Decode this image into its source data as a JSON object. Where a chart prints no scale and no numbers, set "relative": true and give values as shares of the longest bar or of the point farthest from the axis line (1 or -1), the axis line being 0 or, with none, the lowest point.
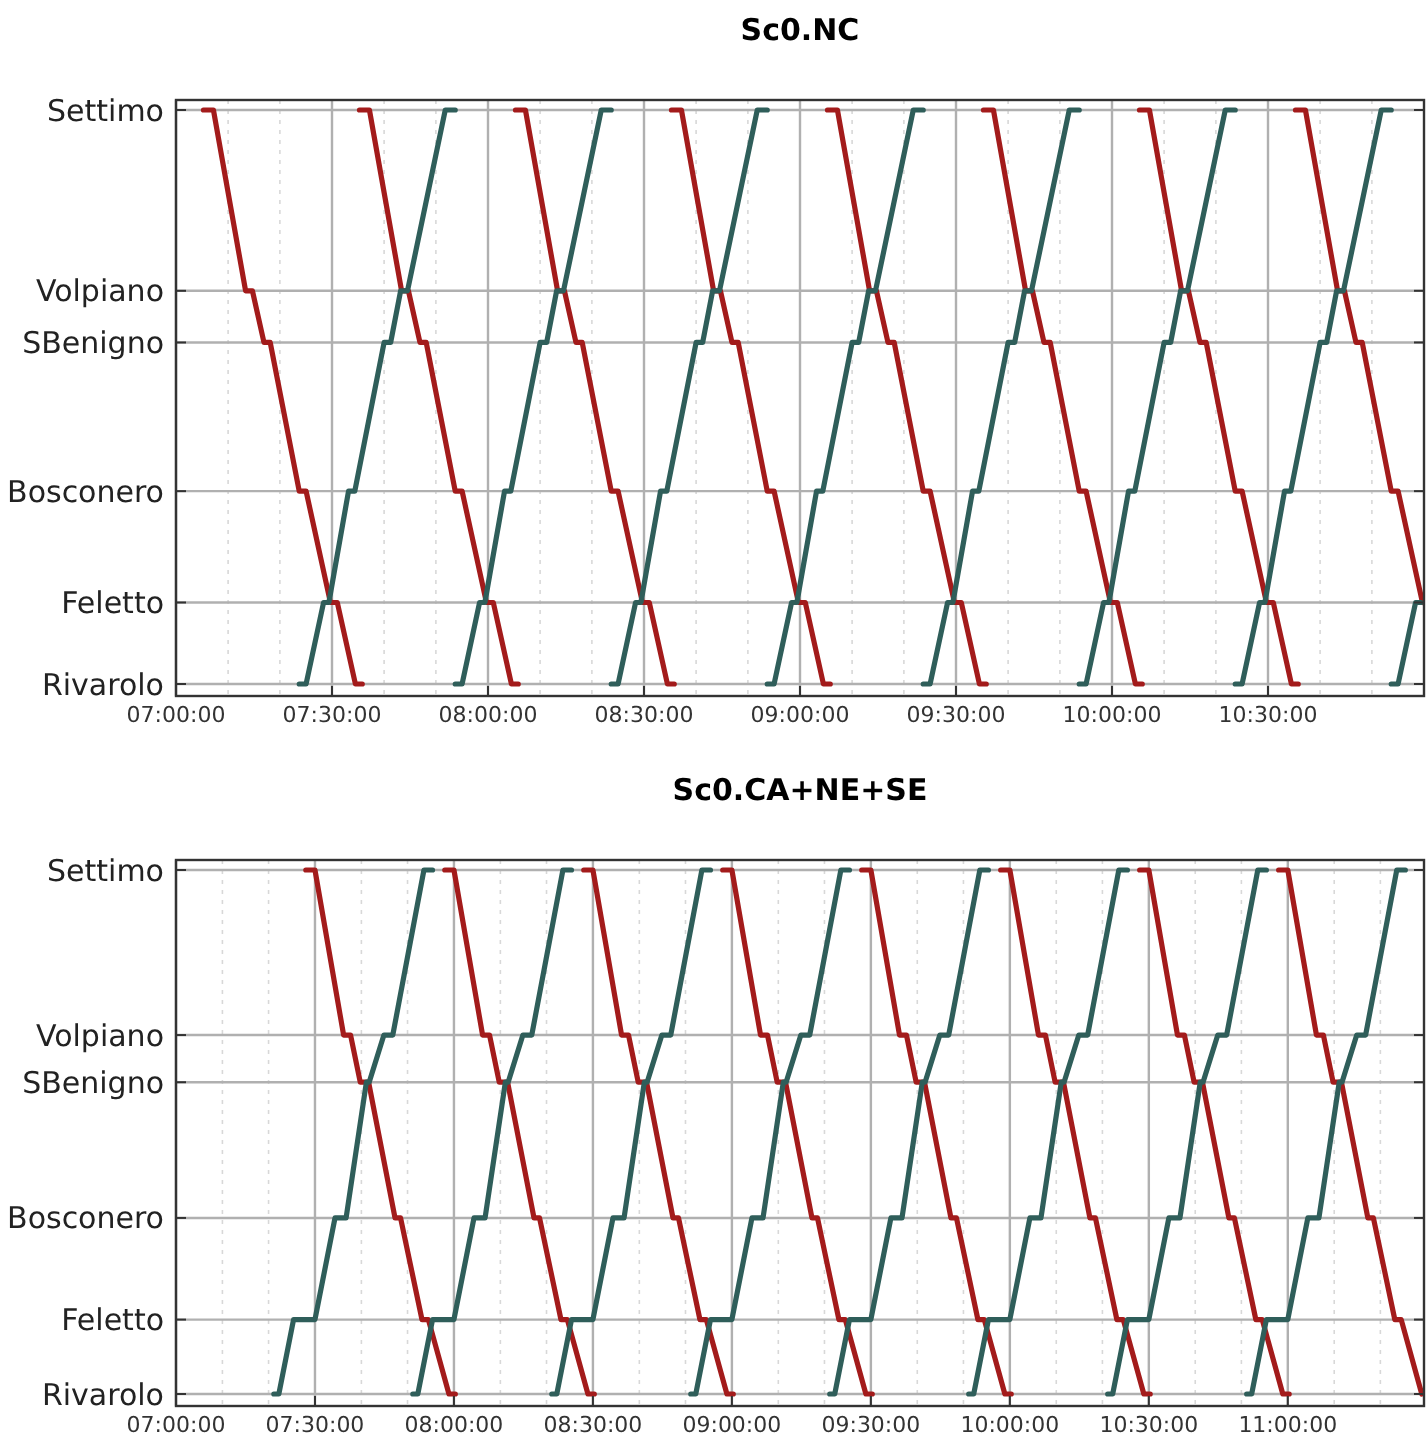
{
  "chart_data": [
    {
      "type": "line",
      "title": "Sc0.NC",
      "relative": true,
      "xlim": [
        7,
        11
      ],
      "grid": true,
      "marker": "none",
      "line_style": "solid",
      "annotations": [
        "Rivarolo",
        "Feletto",
        "Bosconero",
        "SBenigno",
        "Volpiano",
        "Settimo"
      ],
      "xticks": [
        {
          "value": 7,
          "label": "07:00:00"
        },
        {
          "value": 7.167,
          "label": null
        },
        {
          "value": 7.333,
          "label": null
        },
        {
          "value": 7.5,
          "label": "07:30:00"
        },
        {
          "value": 7.667,
          "label": null
        },
        {
          "value": 7.833,
          "label": null
        },
        {
          "value": 8,
          "label": "08:00:00"
        },
        {
          "value": 8.167,
          "label": null
        },
        {
          "value": 8.333,
          "label": null
        },
        {
          "value": 8.5,
          "label": "08:30:00"
        },
        {
          "value": 8.667,
          "label": null
        },
        {
          "value": 8.833,
          "label": null
        },
        {
          "value": 9,
          "label": "09:00:00"
        },
        {
          "value": 9.167,
          "label": null
        },
        {
          "value": 9.333,
          "label": null
        },
        {
          "value": 9.5,
          "label": "09:30:00"
        },
        {
          "value": 9.667,
          "label": null
        },
        {
          "value": 9.833,
          "label": null
        },
        {
          "value": 10,
          "label": "10:00:00"
        },
        {
          "value": 10.167,
          "label": null
        },
        {
          "value": 10.333,
          "label": null
        },
        {
          "value": 10.5,
          "label": "10:30:00"
        },
        {
          "value": 10.667,
          "label": null
        },
        {
          "value": 10.833,
          "label": null
        }
      ],
      "series": [
        {
          "color": "#a31b1b",
          "x": [
            7.088,
            7.12,
            7.223,
            7.245,
            7.282,
            7.302,
            7.395,
            7.417,
            7.495,
            7.517,
            7.575,
            7.597
          ],
          "values": [
            1,
            1,
            0.685,
            0.685,
            0.595,
            0.595,
            0.336,
            0.336,
            0.142,
            0.142,
            0,
            0
          ]
        },
        {
          "color": "#a31b1b",
          "x": [
            7.588,
            7.62,
            7.723,
            7.745,
            7.782,
            7.802,
            7.895,
            7.917,
            7.995,
            8.017,
            8.075,
            8.097
          ],
          "values": [
            1,
            1,
            0.685,
            0.685,
            0.595,
            0.595,
            0.336,
            0.336,
            0.142,
            0.142,
            0,
            0
          ]
        },
        {
          "color": "#a31b1b",
          "x": [
            8.088,
            8.12,
            8.223,
            8.245,
            8.282,
            8.302,
            8.395,
            8.417,
            8.495,
            8.517,
            8.575,
            8.597
          ],
          "values": [
            1,
            1,
            0.685,
            0.685,
            0.595,
            0.595,
            0.336,
            0.336,
            0.142,
            0.142,
            0,
            0
          ]
        },
        {
          "color": "#a31b1b",
          "x": [
            8.588,
            8.62,
            8.723,
            8.745,
            8.782,
            8.802,
            8.895,
            8.917,
            8.995,
            9.017,
            9.075,
            9.097
          ],
          "values": [
            1,
            1,
            0.685,
            0.685,
            0.595,
            0.595,
            0.336,
            0.336,
            0.142,
            0.142,
            0,
            0
          ]
        },
        {
          "color": "#a31b1b",
          "x": [
            9.088,
            9.12,
            9.223,
            9.245,
            9.282,
            9.302,
            9.395,
            9.417,
            9.495,
            9.517,
            9.575,
            9.597
          ],
          "values": [
            1,
            1,
            0.685,
            0.685,
            0.595,
            0.595,
            0.336,
            0.336,
            0.142,
            0.142,
            0,
            0
          ]
        },
        {
          "color": "#a31b1b",
          "x": [
            9.588,
            9.62,
            9.723,
            9.745,
            9.782,
            9.802,
            9.895,
            9.917,
            9.995,
            10.017,
            10.075,
            10.097
          ],
          "values": [
            1,
            1,
            0.685,
            0.685,
            0.595,
            0.595,
            0.336,
            0.336,
            0.142,
            0.142,
            0,
            0
          ]
        },
        {
          "color": "#a31b1b",
          "x": [
            10.088,
            10.12,
            10.223,
            10.245,
            10.282,
            10.302,
            10.395,
            10.417,
            10.495,
            10.517,
            10.575,
            10.597
          ],
          "values": [
            1,
            1,
            0.685,
            0.685,
            0.595,
            0.595,
            0.336,
            0.336,
            0.142,
            0.142,
            0,
            0
          ]
        },
        {
          "color": "#a31b1b",
          "x": [
            10.588,
            10.62,
            10.723,
            10.745,
            10.782,
            10.802,
            10.895,
            10.917,
            10.995
          ],
          "values": [
            1,
            1,
            0.685,
            0.685,
            0.595,
            0.595,
            0.336,
            0.336,
            0.142
          ]
        },
        {
          "color": "#2f5e5a",
          "x": [
            7.395,
            7.417,
            7.473,
            7.49,
            7.553,
            7.573,
            7.667,
            7.688,
            7.72,
            7.742,
            7.863,
            7.895
          ],
          "values": [
            0,
            0,
            0.142,
            0.142,
            0.336,
            0.336,
            0.595,
            0.595,
            0.685,
            0.685,
            1,
            1
          ]
        },
        {
          "color": "#2f5e5a",
          "x": [
            7.895,
            7.917,
            7.973,
            7.99,
            8.053,
            8.073,
            8.167,
            8.188,
            8.22,
            8.242,
            8.363,
            8.395
          ],
          "values": [
            0,
            0,
            0.142,
            0.142,
            0.336,
            0.336,
            0.595,
            0.595,
            0.685,
            0.685,
            1,
            1
          ]
        },
        {
          "color": "#2f5e5a",
          "x": [
            8.395,
            8.417,
            8.473,
            8.49,
            8.553,
            8.573,
            8.667,
            8.688,
            8.72,
            8.742,
            8.863,
            8.895
          ],
          "values": [
            0,
            0,
            0.142,
            0.142,
            0.336,
            0.336,
            0.595,
            0.595,
            0.685,
            0.685,
            1,
            1
          ]
        },
        {
          "color": "#2f5e5a",
          "x": [
            8.895,
            8.917,
            8.973,
            8.99,
            9.053,
            9.073,
            9.167,
            9.188,
            9.22,
            9.242,
            9.363,
            9.395
          ],
          "values": [
            0,
            0,
            0.142,
            0.142,
            0.336,
            0.336,
            0.595,
            0.595,
            0.685,
            0.685,
            1,
            1
          ]
        },
        {
          "color": "#2f5e5a",
          "x": [
            9.395,
            9.417,
            9.473,
            9.49,
            9.553,
            9.573,
            9.667,
            9.688,
            9.72,
            9.742,
            9.863,
            9.895
          ],
          "values": [
            0,
            0,
            0.142,
            0.142,
            0.336,
            0.336,
            0.595,
            0.595,
            0.685,
            0.685,
            1,
            1
          ]
        },
        {
          "color": "#2f5e5a",
          "x": [
            9.895,
            9.917,
            9.973,
            9.99,
            10.053,
            10.073,
            10.167,
            10.188,
            10.22,
            10.242,
            10.363,
            10.395
          ],
          "values": [
            0,
            0,
            0.142,
            0.142,
            0.336,
            0.336,
            0.595,
            0.595,
            0.685,
            0.685,
            1,
            1
          ]
        },
        {
          "color": "#2f5e5a",
          "x": [
            10.395,
            10.417,
            10.473,
            10.49,
            10.553,
            10.573,
            10.667,
            10.688,
            10.72,
            10.742,
            10.863,
            10.895
          ],
          "values": [
            0,
            0,
            0.142,
            0.142,
            0.336,
            0.336,
            0.595,
            0.595,
            0.685,
            0.685,
            1,
            1
          ]
        },
        {
          "color": "#2f5e5a",
          "x": [
            10.895,
            10.917,
            10.973,
            10.99
          ],
          "values": [
            0,
            0,
            0.142,
            0.142
          ]
        }
      ]
    },
    {
      "type": "line",
      "title": "Sc0.CA+NE+SE",
      "relative": true,
      "xlim": [
        7,
        11.49
      ],
      "grid": true,
      "marker": "none",
      "line_style": "solid",
      "annotations": [
        "Rivarolo",
        "Feletto",
        "Bosconero",
        "SBenigno",
        "Volpiano",
        "Settimo"
      ],
      "xticks": [
        {
          "value": 7,
          "label": "07:00:00"
        },
        {
          "value": 7.167,
          "label": null
        },
        {
          "value": 7.333,
          "label": null
        },
        {
          "value": 7.5,
          "label": "07:30:00"
        },
        {
          "value": 7.667,
          "label": null
        },
        {
          "value": 7.833,
          "label": null
        },
        {
          "value": 8,
          "label": "08:00:00"
        },
        {
          "value": 8.167,
          "label": null
        },
        {
          "value": 8.333,
          "label": null
        },
        {
          "value": 8.5,
          "label": "08:30:00"
        },
        {
          "value": 8.667,
          "label": null
        },
        {
          "value": 8.833,
          "label": null
        },
        {
          "value": 9,
          "label": "09:00:00"
        },
        {
          "value": 9.167,
          "label": null
        },
        {
          "value": 9.333,
          "label": null
        },
        {
          "value": 9.5,
          "label": "09:30:00"
        },
        {
          "value": 9.667,
          "label": null
        },
        {
          "value": 9.833,
          "label": null
        },
        {
          "value": 10,
          "label": "10:00:00"
        },
        {
          "value": 10.167,
          "label": null
        },
        {
          "value": 10.333,
          "label": null
        },
        {
          "value": 10.5,
          "label": "10:30:00"
        },
        {
          "value": 10.667,
          "label": null
        },
        {
          "value": 10.833,
          "label": null
        },
        {
          "value": 11,
          "label": "11:00:00"
        },
        {
          "value": 11.167,
          "label": null
        },
        {
          "value": 11.333,
          "label": null
        }
      ],
      "series": [
        {
          "color": "#a31b1b",
          "x": [
            7.467,
            7.5,
            7.603,
            7.628,
            7.663,
            7.693,
            7.788,
            7.808,
            7.885,
            7.908,
            7.982,
            8.005
          ],
          "values": [
            1,
            1,
            0.685,
            0.685,
            0.595,
            0.595,
            0.336,
            0.336,
            0.142,
            0.142,
            0,
            0
          ]
        },
        {
          "color": "#a31b1b",
          "x": [
            7.967,
            8.0,
            8.103,
            8.128,
            8.163,
            8.193,
            8.288,
            8.308,
            8.385,
            8.408,
            8.482,
            8.505
          ],
          "values": [
            1,
            1,
            0.685,
            0.685,
            0.595,
            0.595,
            0.336,
            0.336,
            0.142,
            0.142,
            0,
            0
          ]
        },
        {
          "color": "#a31b1b",
          "x": [
            8.467,
            8.5,
            8.603,
            8.628,
            8.663,
            8.693,
            8.788,
            8.808,
            8.885,
            8.908,
            8.982,
            9.005
          ],
          "values": [
            1,
            1,
            0.685,
            0.685,
            0.595,
            0.595,
            0.336,
            0.336,
            0.142,
            0.142,
            0,
            0
          ]
        },
        {
          "color": "#a31b1b",
          "x": [
            8.967,
            9.0,
            9.103,
            9.128,
            9.163,
            9.193,
            9.288,
            9.308,
            9.385,
            9.408,
            9.482,
            9.505
          ],
          "values": [
            1,
            1,
            0.685,
            0.685,
            0.595,
            0.595,
            0.336,
            0.336,
            0.142,
            0.142,
            0,
            0
          ]
        },
        {
          "color": "#a31b1b",
          "x": [
            9.467,
            9.5,
            9.603,
            9.628,
            9.663,
            9.693,
            9.788,
            9.808,
            9.885,
            9.908,
            9.982,
            10.005
          ],
          "values": [
            1,
            1,
            0.685,
            0.685,
            0.595,
            0.595,
            0.336,
            0.336,
            0.142,
            0.142,
            0,
            0
          ]
        },
        {
          "color": "#a31b1b",
          "x": [
            9.967,
            10.0,
            10.103,
            10.128,
            10.163,
            10.193,
            10.288,
            10.308,
            10.385,
            10.408,
            10.482,
            10.505
          ],
          "values": [
            1,
            1,
            0.685,
            0.685,
            0.595,
            0.595,
            0.336,
            0.336,
            0.142,
            0.142,
            0,
            0
          ]
        },
        {
          "color": "#a31b1b",
          "x": [
            10.467,
            10.5,
            10.603,
            10.628,
            10.663,
            10.693,
            10.788,
            10.808,
            10.885,
            10.908,
            10.982,
            11.005
          ],
          "values": [
            1,
            1,
            0.685,
            0.685,
            0.595,
            0.595,
            0.336,
            0.336,
            0.142,
            0.142,
            0,
            0
          ]
        },
        {
          "color": "#a31b1b",
          "x": [
            10.967,
            11.0,
            11.103,
            11.128,
            11.163,
            11.193,
            11.288,
            11.308,
            11.385,
            11.408,
            11.482
          ],
          "values": [
            1,
            1,
            0.685,
            0.685,
            0.595,
            0.595,
            0.336,
            0.336,
            0.142,
            0.142,
            0
          ]
        },
        {
          "color": "#2f5e5a",
          "x": [
            7.352,
            7.37,
            7.423,
            7.5,
            7.572,
            7.612,
            7.685,
            7.695,
            7.748,
            7.78,
            7.892,
            7.923
          ],
          "values": [
            0,
            0,
            0.142,
            0.142,
            0.336,
            0.336,
            0.595,
            0.595,
            0.685,
            0.685,
            1,
            1
          ]
        },
        {
          "color": "#2f5e5a",
          "x": [
            7.852,
            7.87,
            7.923,
            8.0,
            8.072,
            8.112,
            8.185,
            8.195,
            8.248,
            8.28,
            8.392,
            8.423
          ],
          "values": [
            0,
            0,
            0.142,
            0.142,
            0.336,
            0.336,
            0.595,
            0.595,
            0.685,
            0.685,
            1,
            1
          ]
        },
        {
          "color": "#2f5e5a",
          "x": [
            8.352,
            8.37,
            8.423,
            8.5,
            8.572,
            8.612,
            8.685,
            8.695,
            8.748,
            8.78,
            8.892,
            8.923
          ],
          "values": [
            0,
            0,
            0.142,
            0.142,
            0.336,
            0.336,
            0.595,
            0.595,
            0.685,
            0.685,
            1,
            1
          ]
        },
        {
          "color": "#2f5e5a",
          "x": [
            8.852,
            8.87,
            8.923,
            9.0,
            9.072,
            9.112,
            9.185,
            9.195,
            9.248,
            9.28,
            9.392,
            9.423
          ],
          "values": [
            0,
            0,
            0.142,
            0.142,
            0.336,
            0.336,
            0.595,
            0.595,
            0.685,
            0.685,
            1,
            1
          ]
        },
        {
          "color": "#2f5e5a",
          "x": [
            9.352,
            9.37,
            9.423,
            9.5,
            9.572,
            9.612,
            9.685,
            9.695,
            9.748,
            9.78,
            9.892,
            9.923
          ],
          "values": [
            0,
            0,
            0.142,
            0.142,
            0.336,
            0.336,
            0.595,
            0.595,
            0.685,
            0.685,
            1,
            1
          ]
        },
        {
          "color": "#2f5e5a",
          "x": [
            9.852,
            9.87,
            9.923,
            10.0,
            10.072,
            10.112,
            10.185,
            10.195,
            10.248,
            10.28,
            10.392,
            10.423
          ],
          "values": [
            0,
            0,
            0.142,
            0.142,
            0.336,
            0.336,
            0.595,
            0.595,
            0.685,
            0.685,
            1,
            1
          ]
        },
        {
          "color": "#2f5e5a",
          "x": [
            10.352,
            10.37,
            10.423,
            10.5,
            10.572,
            10.612,
            10.685,
            10.695,
            10.748,
            10.78,
            10.892,
            10.923
          ],
          "values": [
            0,
            0,
            0.142,
            0.142,
            0.336,
            0.336,
            0.595,
            0.595,
            0.685,
            0.685,
            1,
            1
          ]
        },
        {
          "color": "#2f5e5a",
          "x": [
            10.852,
            10.87,
            10.923,
            11.0,
            11.072,
            11.112,
            11.185,
            11.195,
            11.248,
            11.28,
            11.392,
            11.423
          ],
          "values": [
            0,
            0,
            0.142,
            0.142,
            0.336,
            0.336,
            0.595,
            0.595,
            0.685,
            0.685,
            1,
            1
          ]
        }
      ]
    }
  ]
}
